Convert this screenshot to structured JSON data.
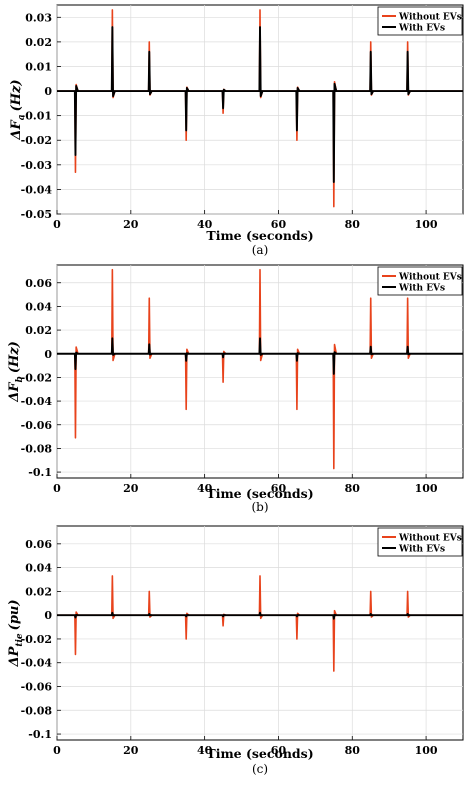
{
  "chart_data": [
    {
      "type": "line",
      "panel_label": "(a)",
      "xlabel": "Time (seconds)",
      "ylabel_main": "ΔF",
      "ylabel_sub": "a",
      "ylabel_unit": "(Hz)",
      "xlim": [
        0,
        110
      ],
      "ylim": [
        -0.05,
        0.035
      ],
      "xticks": [
        0,
        20,
        40,
        60,
        80,
        100
      ],
      "xtick_labels": [
        "0",
        "20",
        "40",
        "60",
        "80",
        "100"
      ],
      "yticks": [
        -0.05,
        -0.04,
        -0.03,
        -0.02,
        -0.01,
        0,
        0.01,
        0.02,
        0.03
      ],
      "ytick_labels": [
        "-0.05",
        "-0.04",
        "-0.03",
        "-0.02",
        "-0.01",
        "0",
        "0.01",
        "0.02",
        "0.03"
      ],
      "grid": true,
      "legend": "top-right",
      "series": [
        {
          "name": "Without EVs",
          "color": "#e8431c",
          "events": [
            {
              "t": 5,
              "peak": -0.033
            },
            {
              "t": 15,
              "peak": 0.033
            },
            {
              "t": 25,
              "peak": 0.02
            },
            {
              "t": 35,
              "peak": -0.02
            },
            {
              "t": 45,
              "peak": -0.009
            },
            {
              "t": 55,
              "peak": 0.033
            },
            {
              "t": 65,
              "peak": -0.02
            },
            {
              "t": 75,
              "peak": -0.047
            },
            {
              "t": 85,
              "peak": 0.02
            },
            {
              "t": 95,
              "peak": 0.02
            }
          ]
        },
        {
          "name": "With EVs",
          "color": "#000000",
          "events": [
            {
              "t": 5,
              "peak": -0.026
            },
            {
              "t": 15,
              "peak": 0.026
            },
            {
              "t": 25,
              "peak": 0.016
            },
            {
              "t": 35,
              "peak": -0.016
            },
            {
              "t": 45,
              "peak": -0.007
            },
            {
              "t": 55,
              "peak": 0.026
            },
            {
              "t": 65,
              "peak": -0.016
            },
            {
              "t": 75,
              "peak": -0.037
            },
            {
              "t": 85,
              "peak": 0.016
            },
            {
              "t": 95,
              "peak": 0.016
            }
          ]
        }
      ]
    },
    {
      "type": "line",
      "panel_label": "(b)",
      "xlabel": "Time (seconds)",
      "ylabel_main": "ΔF",
      "ylabel_sub": "b",
      "ylabel_unit": "(Hz)",
      "xlim": [
        0,
        110
      ],
      "ylim": [
        -0.105,
        0.075
      ],
      "xticks": [
        0,
        20,
        40,
        60,
        80,
        100
      ],
      "xtick_labels": [
        "0",
        "20",
        "40",
        "60",
        "80",
        "100"
      ],
      "yticks": [
        -0.1,
        -0.08,
        -0.06,
        -0.04,
        -0.02,
        0,
        0.02,
        0.04,
        0.06
      ],
      "ytick_labels": [
        "-0.1",
        "-0.08",
        "-0.06",
        "-0.04",
        "-0.02",
        "0",
        "0.02",
        "0.04",
        "0.06"
      ],
      "grid": true,
      "legend": "top-right",
      "series": [
        {
          "name": "Without EVs",
          "color": "#e8431c",
          "events": [
            {
              "t": 5,
              "peak": -0.071
            },
            {
              "t": 15,
              "peak": 0.071
            },
            {
              "t": 25,
              "peak": 0.047
            },
            {
              "t": 35,
              "peak": -0.047
            },
            {
              "t": 45,
              "peak": -0.024
            },
            {
              "t": 55,
              "peak": 0.071
            },
            {
              "t": 65,
              "peak": -0.047
            },
            {
              "t": 75,
              "peak": -0.097
            },
            {
              "t": 85,
              "peak": 0.047
            },
            {
              "t": 95,
              "peak": 0.047
            }
          ]
        },
        {
          "name": "With EVs",
          "color": "#000000",
          "events": [
            {
              "t": 5,
              "peak": -0.013
            },
            {
              "t": 15,
              "peak": 0.013
            },
            {
              "t": 25,
              "peak": 0.008
            },
            {
              "t": 35,
              "peak": -0.006
            },
            {
              "t": 45,
              "peak": -0.003
            },
            {
              "t": 55,
              "peak": 0.013
            },
            {
              "t": 65,
              "peak": -0.006
            },
            {
              "t": 75,
              "peak": -0.017
            },
            {
              "t": 85,
              "peak": 0.006
            },
            {
              "t": 95,
              "peak": 0.006
            }
          ]
        }
      ]
    },
    {
      "type": "line",
      "panel_label": "(c)",
      "xlabel": "Time (seconds)",
      "ylabel_main": "ΔP",
      "ylabel_sub": "tie",
      "ylabel_unit": "(pu)",
      "xlim": [
        0,
        110
      ],
      "ylim": [
        -0.105,
        0.075
      ],
      "xticks": [
        0,
        20,
        40,
        60,
        80,
        100
      ],
      "xtick_labels": [
        "0",
        "20",
        "40",
        "60",
        "80",
        "100"
      ],
      "yticks": [
        -0.1,
        -0.08,
        -0.06,
        -0.04,
        -0.02,
        0,
        0.02,
        0.04,
        0.06
      ],
      "ytick_labels": [
        "-0.1",
        "-0.08",
        "-0.06",
        "-0.04",
        "-0.02",
        "0",
        "0.02",
        "0.04",
        "0.06"
      ],
      "grid": true,
      "legend": "top-right",
      "series": [
        {
          "name": "Without EVs",
          "color": "#e8431c",
          "events": [
            {
              "t": 5,
              "peak": -0.033
            },
            {
              "t": 15,
              "peak": 0.033
            },
            {
              "t": 25,
              "peak": 0.02
            },
            {
              "t": 35,
              "peak": -0.02
            },
            {
              "t": 45,
              "peak": -0.009
            },
            {
              "t": 55,
              "peak": 0.033
            },
            {
              "t": 65,
              "peak": -0.02
            },
            {
              "t": 75,
              "peak": -0.047
            },
            {
              "t": 85,
              "peak": 0.02
            },
            {
              "t": 95,
              "peak": 0.02
            }
          ]
        },
        {
          "name": "With EVs",
          "color": "#000000",
          "events": [
            {
              "t": 5,
              "peak": -0.002
            },
            {
              "t": 15,
              "peak": 0.002
            },
            {
              "t": 25,
              "peak": 0.001
            },
            {
              "t": 35,
              "peak": -0.001
            },
            {
              "t": 45,
              "peak": -0.001
            },
            {
              "t": 55,
              "peak": 0.002
            },
            {
              "t": 65,
              "peak": -0.001
            },
            {
              "t": 75,
              "peak": -0.003
            },
            {
              "t": 85,
              "peak": 0.001
            },
            {
              "t": 95,
              "peak": 0.001
            }
          ]
        }
      ]
    }
  ]
}
